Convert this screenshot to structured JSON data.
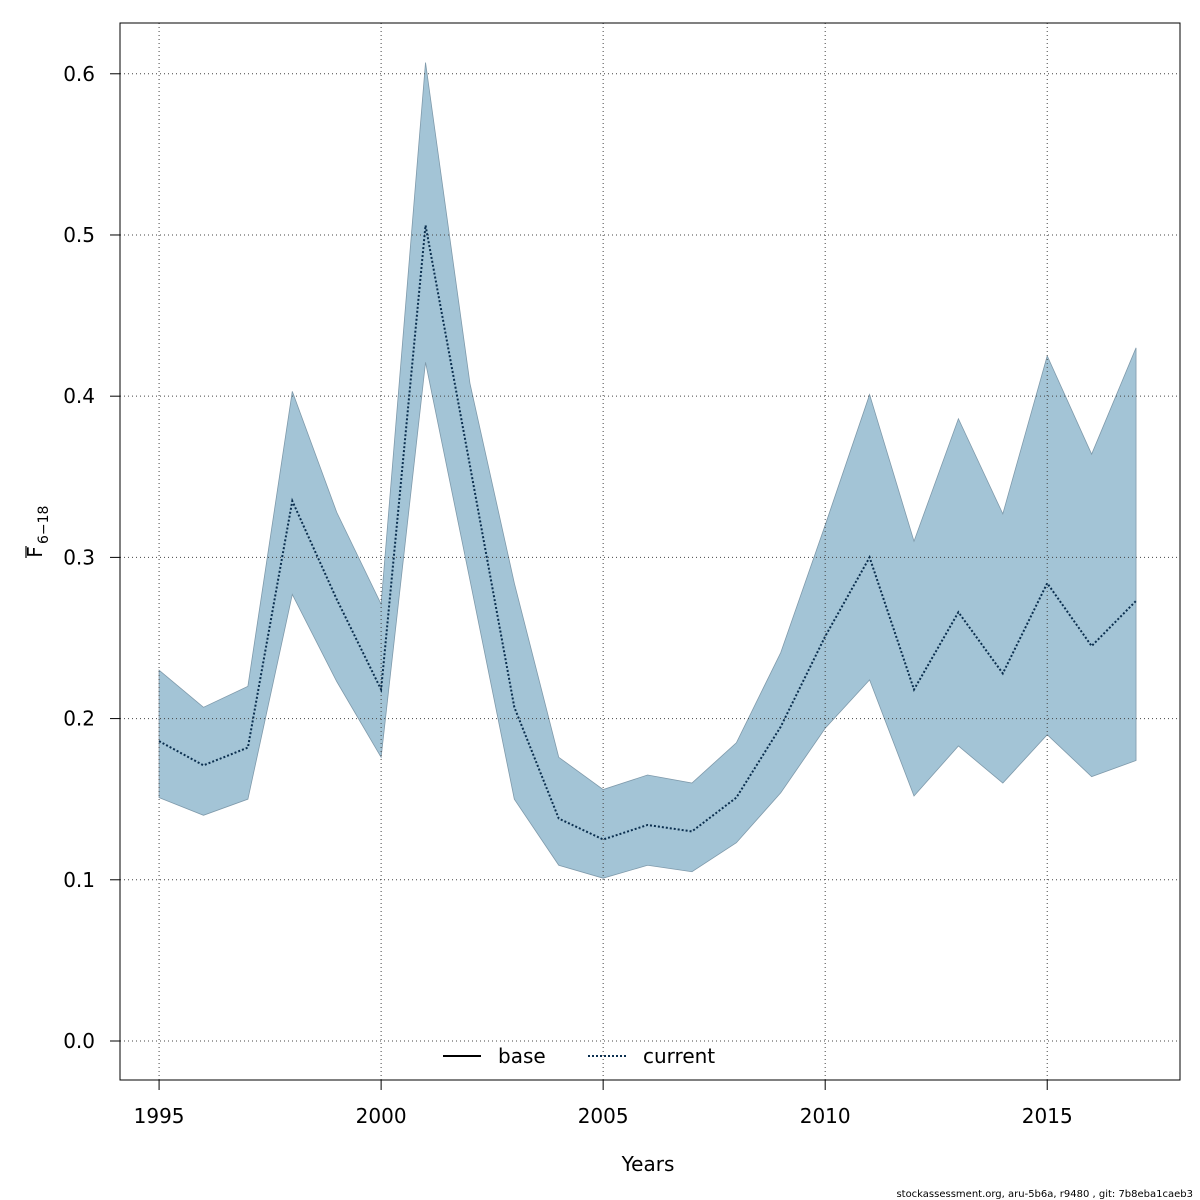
{
  "chart_data": {
    "type": "line",
    "x_label": "Years",
    "y_label": "F",
    "y_label_subscript": "6−18",
    "footnote": "stockassessment.org, aru-5b6a, r9480 , git: 7b8eba1caeb3",
    "x": [
      1995,
      1996,
      1997,
      1998,
      1999,
      2000,
      2001,
      2002,
      2003,
      2004,
      2005,
      2006,
      2007,
      2008,
      2009,
      2010,
      2011,
      2012,
      2013,
      2014,
      2015,
      2016,
      2017
    ],
    "series": [
      {
        "name": "base",
        "color": "#000000",
        "dash": "solid"
      },
      {
        "name": "current",
        "color": "#0b2f4f",
        "dash": "dotted",
        "values": [
          0.186,
          0.171,
          0.182,
          0.335,
          0.274,
          0.218,
          0.506,
          0.357,
          0.207,
          0.138,
          0.125,
          0.134,
          0.13,
          0.151,
          0.195,
          0.251,
          0.3,
          0.218,
          0.266,
          0.228,
          0.284,
          0.245,
          0.273
        ]
      }
    ],
    "band": {
      "color": "#a3c4d6",
      "upper": [
        0.23,
        0.207,
        0.22,
        0.403,
        0.328,
        0.271,
        0.607,
        0.408,
        0.284,
        0.176,
        0.156,
        0.165,
        0.16,
        0.185,
        0.241,
        0.32,
        0.401,
        0.31,
        0.386,
        0.327,
        0.425,
        0.364,
        0.43
      ],
      "lower": [
        0.151,
        0.14,
        0.15,
        0.277,
        0.223,
        0.176,
        0.421,
        0.286,
        0.15,
        0.109,
        0.101,
        0.109,
        0.105,
        0.123,
        0.154,
        0.194,
        0.224,
        0.152,
        0.183,
        0.16,
        0.19,
        0.164,
        0.174
      ]
    },
    "xlim": [
      1994.12,
      2017.99
    ],
    "ylim": [
      -0.0242,
      0.6315
    ],
    "xticks": [
      1995,
      2000,
      2005,
      2010,
      2015
    ],
    "yticks": [
      {
        "value": 0,
        "label": "0.0"
      },
      0.1,
      0.2,
      0.3,
      0.4,
      0.5,
      0.6
    ],
    "grid": true,
    "legend": "bottom"
  }
}
